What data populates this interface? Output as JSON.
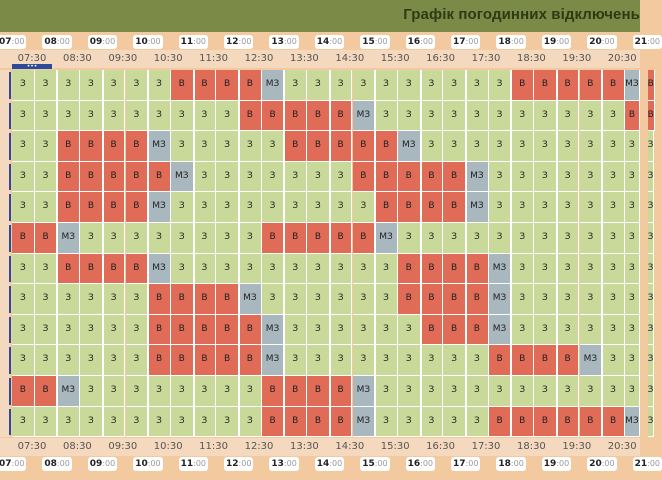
{
  "header": {
    "title": "Графік погодинних відключень"
  },
  "hours": [
    "07",
    "08",
    "09",
    "10",
    "11",
    "12",
    "13",
    "14",
    "15",
    "16",
    "17",
    "18",
    "19",
    "20",
    "21"
  ],
  "hour_suffix": ":00",
  "halves": [
    "07:30",
    "08:30",
    "09:30",
    "10:30",
    "11:30",
    "12:30",
    "13:30",
    "14:30",
    "15:30",
    "16:30",
    "17:30",
    "18:30",
    "19:30",
    "20:30"
  ],
  "now_marker": "•••",
  "legend_codes": {
    "z": "З",
    "b": "В",
    "m": "МЗ"
  },
  "colors": {
    "zeleny": "#c9d99a",
    "vidkl": "#e06c58",
    "mozhlyvo": "#a9b7bf",
    "header": "#7c8a47",
    "accent": "#2c4a9a"
  },
  "rows": [
    [
      "З",
      "З",
      "З",
      "З",
      "З",
      "З",
      "З",
      "В",
      "В",
      "В",
      "В",
      "МЗ",
      "З",
      "З",
      "З",
      "З",
      "З",
      "З",
      "З",
      "З",
      "З",
      "З",
      "В",
      "В",
      "В",
      "В",
      "В",
      "МЗ",
      "В"
    ],
    [
      "З",
      "З",
      "З",
      "З",
      "З",
      "З",
      "З",
      "З",
      "З",
      "З",
      "В",
      "В",
      "В",
      "В",
      "В",
      "МЗ",
      "З",
      "З",
      "З",
      "З",
      "З",
      "З",
      "З",
      "З",
      "З",
      "З",
      "З",
      "В",
      "В"
    ],
    [
      "З",
      "З",
      "В",
      "В",
      "В",
      "В",
      "МЗ",
      "З",
      "З",
      "З",
      "З",
      "З",
      "В",
      "В",
      "В",
      "В",
      "В",
      "МЗ",
      "З",
      "З",
      "З",
      "З",
      "З",
      "З",
      "З",
      "З",
      "З",
      "З",
      "З"
    ],
    [
      "З",
      "З",
      "В",
      "В",
      "В",
      "В",
      "В",
      "МЗ",
      "З",
      "З",
      "З",
      "З",
      "З",
      "З",
      "З",
      "В",
      "В",
      "В",
      "В",
      "В",
      "МЗ",
      "З",
      "З",
      "З",
      "З",
      "З",
      "З",
      "З",
      "З"
    ],
    [
      "З",
      "З",
      "В",
      "В",
      "В",
      "В",
      "МЗ",
      "З",
      "З",
      "З",
      "З",
      "З",
      "З",
      "З",
      "З",
      "З",
      "В",
      "В",
      "В",
      "В",
      "МЗ",
      "З",
      "З",
      "З",
      "З",
      "З",
      "З",
      "З",
      "З"
    ],
    [
      "В",
      "В",
      "МЗ",
      "З",
      "З",
      "З",
      "З",
      "З",
      "З",
      "З",
      "З",
      "В",
      "В",
      "В",
      "В",
      "В",
      "МЗ",
      "З",
      "З",
      "З",
      "З",
      "З",
      "З",
      "З",
      "З",
      "З",
      "З",
      "З",
      "З"
    ],
    [
      "З",
      "З",
      "В",
      "В",
      "В",
      "В",
      "МЗ",
      "З",
      "З",
      "З",
      "З",
      "З",
      "З",
      "З",
      "З",
      "З",
      "З",
      "В",
      "В",
      "В",
      "В",
      "МЗ",
      "З",
      "З",
      "З",
      "З",
      "З",
      "З",
      "З"
    ],
    [
      "З",
      "З",
      "З",
      "З",
      "З",
      "З",
      "В",
      "В",
      "В",
      "В",
      "МЗ",
      "З",
      "З",
      "З",
      "З",
      "З",
      "З",
      "В",
      "В",
      "В",
      "В",
      "МЗ",
      "З",
      "З",
      "З",
      "З",
      "З",
      "З",
      "З"
    ],
    [
      "З",
      "З",
      "З",
      "З",
      "З",
      "З",
      "В",
      "В",
      "В",
      "В",
      "В",
      "МЗ",
      "З",
      "З",
      "З",
      "З",
      "З",
      "З",
      "В",
      "В",
      "В",
      "МЗ",
      "З",
      "З",
      "З",
      "З",
      "З",
      "З",
      "З"
    ],
    [
      "З",
      "З",
      "З",
      "З",
      "З",
      "З",
      "В",
      "В",
      "В",
      "В",
      "В",
      "МЗ",
      "З",
      "З",
      "З",
      "З",
      "З",
      "З",
      "З",
      "З",
      "З",
      "В",
      "В",
      "В",
      "В",
      "МЗ",
      "З",
      "З",
      "З"
    ],
    [
      "В",
      "В",
      "МЗ",
      "З",
      "З",
      "З",
      "З",
      "З",
      "З",
      "З",
      "З",
      "В",
      "В",
      "В",
      "В",
      "МЗ",
      "З",
      "З",
      "З",
      "З",
      "З",
      "З",
      "З",
      "З",
      "З",
      "З",
      "З",
      "З",
      "З"
    ],
    [
      "З",
      "З",
      "З",
      "З",
      "З",
      "З",
      "З",
      "З",
      "З",
      "З",
      "З",
      "В",
      "В",
      "В",
      "В",
      "МЗ",
      "З",
      "З",
      "З",
      "З",
      "З",
      "В",
      "В",
      "В",
      "В",
      "В",
      "В",
      "МЗ",
      "З"
    ]
  ]
}
